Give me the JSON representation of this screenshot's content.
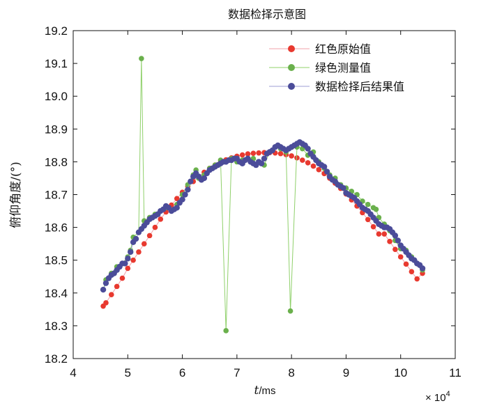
{
  "chart_data": {
    "type": "line",
    "title": "数据检择示意图",
    "xlabel_italic": "t",
    "xlabel_unit": "/ms",
    "ylabel": "俯仰角度/(°)",
    "x_multiplier": "× 10",
    "x_multiplier_exp": "4",
    "xlim": [
      4,
      11
    ],
    "ylim": [
      18.2,
      19.2
    ],
    "x_ticks": [
      "4",
      "5",
      "6",
      "7",
      "8",
      "9",
      "10",
      "11"
    ],
    "y_ticks": [
      "18.2",
      "18.3",
      "18.4",
      "18.5",
      "18.6",
      "18.7",
      "18.8",
      "18.9",
      "19.0",
      "19.1",
      "19.2"
    ],
    "grid": false,
    "legend_position": "top-right",
    "series": [
      {
        "name": "红色原始值",
        "color": "#e8392f",
        "line_color": "#f2a0a8",
        "x": [
          4.55,
          4.6,
          4.7,
          4.8,
          4.9,
          5.0,
          5.1,
          5.2,
          5.3,
          5.4,
          5.5,
          5.6,
          5.7,
          5.8,
          5.9,
          6.0,
          6.1,
          6.2,
          6.3,
          6.4,
          6.5,
          6.6,
          6.7,
          6.8,
          6.9,
          7.0,
          7.1,
          7.2,
          7.3,
          7.4,
          7.5,
          7.6,
          7.7,
          7.8,
          7.9,
          8.0,
          8.1,
          8.2,
          8.3,
          8.4,
          8.5,
          8.6,
          8.7,
          8.8,
          8.9,
          9.0,
          9.1,
          9.2,
          9.3,
          9.4,
          9.5,
          9.6,
          9.7,
          9.8,
          9.9,
          10.0,
          10.1,
          10.2,
          10.3,
          10.4
        ],
        "y": [
          18.36,
          18.37,
          18.395,
          18.42,
          18.445,
          18.475,
          18.5,
          18.525,
          18.55,
          18.575,
          18.6,
          18.625,
          18.647,
          18.668,
          18.688,
          18.707,
          18.725,
          18.74,
          18.755,
          18.768,
          18.78,
          18.79,
          18.798,
          18.806,
          18.812,
          18.817,
          18.821,
          18.824,
          18.826,
          18.827,
          18.828,
          18.828,
          18.827,
          18.825,
          18.822,
          18.818,
          18.812,
          18.805,
          18.797,
          18.787,
          18.776,
          18.764,
          18.75,
          18.735,
          18.719,
          18.702,
          18.684,
          18.665,
          18.645,
          18.624,
          18.602,
          18.58,
          18.58,
          18.557,
          18.533,
          18.51,
          18.488,
          18.465,
          18.443,
          18.46
        ]
      },
      {
        "name": "绿色测量值",
        "color": "#6ab04c",
        "line_color": "#8fd06a",
        "x": [
          4.55,
          4.6,
          4.7,
          4.8,
          4.9,
          5.0,
          5.05,
          5.1,
          5.2,
          5.25,
          5.3,
          5.4,
          5.5,
          5.6,
          5.7,
          5.8,
          5.9,
          6.0,
          6.1,
          6.2,
          6.25,
          6.3,
          6.4,
          6.5,
          6.6,
          6.7,
          6.8,
          6.9,
          7.0,
          7.1,
          7.2,
          7.3,
          7.4,
          7.5,
          7.6,
          7.7,
          7.8,
          7.9,
          7.98,
          8.1,
          8.2,
          8.3,
          8.4,
          8.5,
          8.6,
          8.7,
          8.8,
          8.9,
          9.0,
          9.1,
          9.2,
          9.3,
          9.4,
          9.5,
          9.55,
          9.6,
          9.7,
          9.8,
          9.9,
          10.0,
          10.1,
          10.2,
          10.3,
          10.4
        ],
        "y": [
          18.41,
          18.44,
          18.46,
          18.48,
          18.49,
          18.51,
          18.53,
          18.57,
          18.585,
          19.115,
          18.62,
          18.63,
          18.64,
          18.65,
          18.66,
          18.65,
          18.67,
          18.7,
          18.73,
          18.76,
          18.775,
          18.75,
          18.76,
          18.78,
          18.79,
          18.805,
          18.285,
          18.81,
          18.8,
          18.805,
          18.81,
          18.81,
          18.8,
          18.79,
          18.83,
          18.845,
          18.84,
          18.83,
          18.345,
          18.845,
          18.84,
          18.82,
          18.83,
          18.8,
          18.78,
          18.76,
          18.75,
          18.73,
          18.72,
          18.71,
          18.7,
          18.68,
          18.67,
          18.66,
          18.655,
          18.63,
          18.61,
          18.59,
          18.56,
          18.535,
          18.53,
          18.51,
          18.49,
          18.47
        ]
      },
      {
        "name": "数据检择后结果值",
        "color": "#4b4c99",
        "line_color": "#9c9ed6",
        "x": [
          4.55,
          4.6,
          4.65,
          4.7,
          4.75,
          4.8,
          4.85,
          4.9,
          4.95,
          5.0,
          5.05,
          5.1,
          5.15,
          5.2,
          5.25,
          5.3,
          5.35,
          5.4,
          5.45,
          5.5,
          5.55,
          5.6,
          5.65,
          5.7,
          5.75,
          5.8,
          5.85,
          5.9,
          5.95,
          6.0,
          6.05,
          6.1,
          6.15,
          6.2,
          6.25,
          6.3,
          6.35,
          6.4,
          6.45,
          6.5,
          6.55,
          6.6,
          6.65,
          6.7,
          6.75,
          6.8,
          6.85,
          6.9,
          6.95,
          7.0,
          7.05,
          7.1,
          7.15,
          7.2,
          7.25,
          7.3,
          7.35,
          7.4,
          7.45,
          7.5,
          7.55,
          7.6,
          7.65,
          7.7,
          7.75,
          7.8,
          7.85,
          7.9,
          7.95,
          8.0,
          8.05,
          8.1,
          8.15,
          8.2,
          8.25,
          8.3,
          8.35,
          8.4,
          8.45,
          8.5,
          8.55,
          8.6,
          8.65,
          8.7,
          8.75,
          8.8,
          8.85,
          8.9,
          8.95,
          9.0,
          9.05,
          9.1,
          9.15,
          9.2,
          9.25,
          9.3,
          9.35,
          9.4,
          9.45,
          9.5,
          9.55,
          9.6,
          9.65,
          9.7,
          9.75,
          9.8,
          9.85,
          9.9,
          9.95,
          10.0,
          10.05,
          10.1,
          10.15,
          10.2,
          10.25,
          10.3,
          10.35,
          10.4
        ],
        "y": [
          18.41,
          18.43,
          18.445,
          18.455,
          18.46,
          18.47,
          18.48,
          18.49,
          18.49,
          18.505,
          18.525,
          18.555,
          18.565,
          18.585,
          18.595,
          18.605,
          18.615,
          18.625,
          18.63,
          18.635,
          18.64,
          18.65,
          18.655,
          18.665,
          18.66,
          18.65,
          18.655,
          18.66,
          18.675,
          18.685,
          18.7,
          18.715,
          18.74,
          18.755,
          18.765,
          18.755,
          18.745,
          18.75,
          18.765,
          18.775,
          18.78,
          18.785,
          18.79,
          18.795,
          18.8,
          18.8,
          18.805,
          18.805,
          18.81,
          18.81,
          18.8,
          18.795,
          18.805,
          18.81,
          18.8,
          18.795,
          18.79,
          18.8,
          18.795,
          18.81,
          18.825,
          18.83,
          18.835,
          18.845,
          18.85,
          18.845,
          18.84,
          18.835,
          18.84,
          18.845,
          18.85,
          18.855,
          18.86,
          18.855,
          18.85,
          18.84,
          18.825,
          18.815,
          18.805,
          18.795,
          18.79,
          18.785,
          18.77,
          18.755,
          18.745,
          18.74,
          18.73,
          18.725,
          18.72,
          18.705,
          18.7,
          18.695,
          18.69,
          18.68,
          18.67,
          18.66,
          18.655,
          18.65,
          18.64,
          18.63,
          18.62,
          18.61,
          18.605,
          18.6,
          18.6,
          18.595,
          18.585,
          18.575,
          18.56,
          18.545,
          18.535,
          18.525,
          18.515,
          18.505,
          18.5,
          18.49,
          18.485,
          18.475
        ]
      }
    ]
  }
}
